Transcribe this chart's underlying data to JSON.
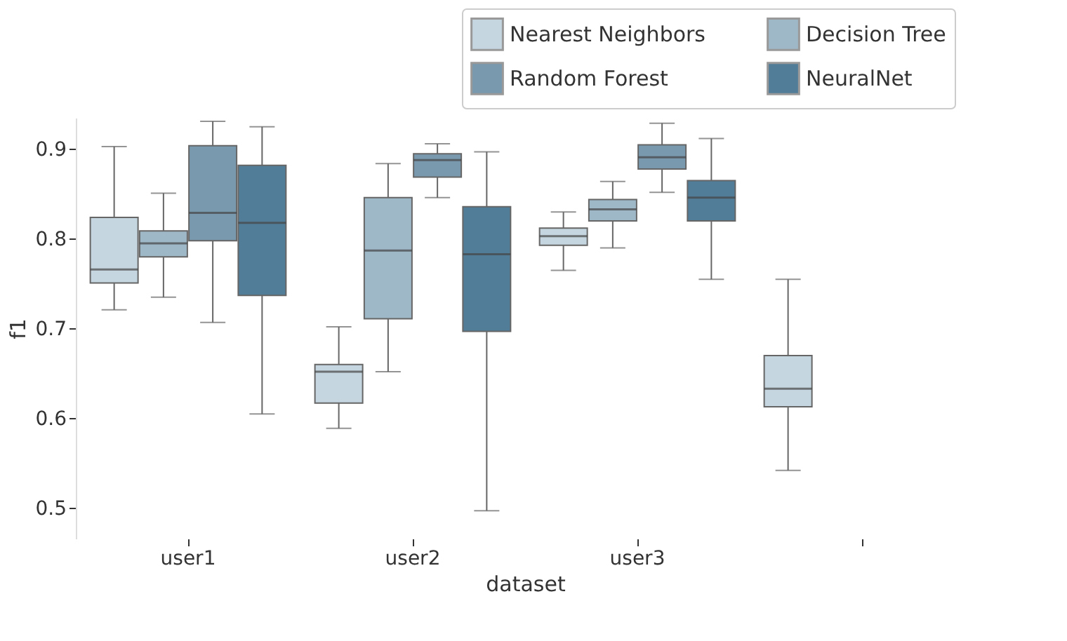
{
  "chart_data": {
    "type": "box",
    "xlabel": "dataset",
    "ylabel": "f1",
    "categories": [
      "user1",
      "user2",
      "user3",
      null
    ],
    "series": [
      {
        "name": "Nearest Neighbors",
        "color": "#c5d6e0",
        "boxes": [
          {
            "low": 0.721,
            "q1": 0.751,
            "median": 0.766,
            "q3": 0.824,
            "high": 0.903
          },
          {
            "low": 0.589,
            "q1": 0.617,
            "median": 0.652,
            "q3": 0.66,
            "high": 0.702
          },
          {
            "low": 0.765,
            "q1": 0.793,
            "median": 0.803,
            "q3": 0.812,
            "high": 0.83
          },
          {
            "low": 0.542,
            "q1": 0.613,
            "median": 0.633,
            "q3": 0.67,
            "high": 0.755
          }
        ]
      },
      {
        "name": "Decision Tree",
        "color": "#9fb8c8",
        "boxes": [
          {
            "low": 0.735,
            "q1": 0.78,
            "median": 0.795,
            "q3": 0.809,
            "high": 0.851
          },
          {
            "low": 0.652,
            "q1": 0.711,
            "median": 0.787,
            "q3": 0.846,
            "high": 0.884
          },
          {
            "low": 0.79,
            "q1": 0.82,
            "median": 0.833,
            "q3": 0.844,
            "high": 0.864
          },
          null
        ]
      },
      {
        "name": "Random Forest",
        "color": "#7899ae",
        "boxes": [
          {
            "low": 0.707,
            "q1": 0.798,
            "median": 0.829,
            "q3": 0.904,
            "high": 0.931
          },
          {
            "low": 0.846,
            "q1": 0.869,
            "median": 0.888,
            "q3": 0.895,
            "high": 0.906
          },
          {
            "low": 0.852,
            "q1": 0.878,
            "median": 0.891,
            "q3": 0.905,
            "high": 0.929
          },
          null
        ]
      },
      {
        "name": "NeuralNet",
        "color": "#527d98",
        "boxes": [
          {
            "low": 0.605,
            "q1": 0.737,
            "median": 0.818,
            "q3": 0.882,
            "high": 0.925
          },
          {
            "low": 0.497,
            "q1": 0.697,
            "median": 0.783,
            "q3": 0.836,
            "high": 0.897
          },
          {
            "low": 0.755,
            "q1": 0.82,
            "median": 0.846,
            "q3": 0.865,
            "high": 0.912
          },
          null
        ]
      }
    ],
    "ylim": [
      0.466,
      0.935
    ],
    "yticks": [
      0.5,
      0.6,
      0.7,
      0.8,
      0.9
    ],
    "grid": false,
    "legend": "top right"
  }
}
